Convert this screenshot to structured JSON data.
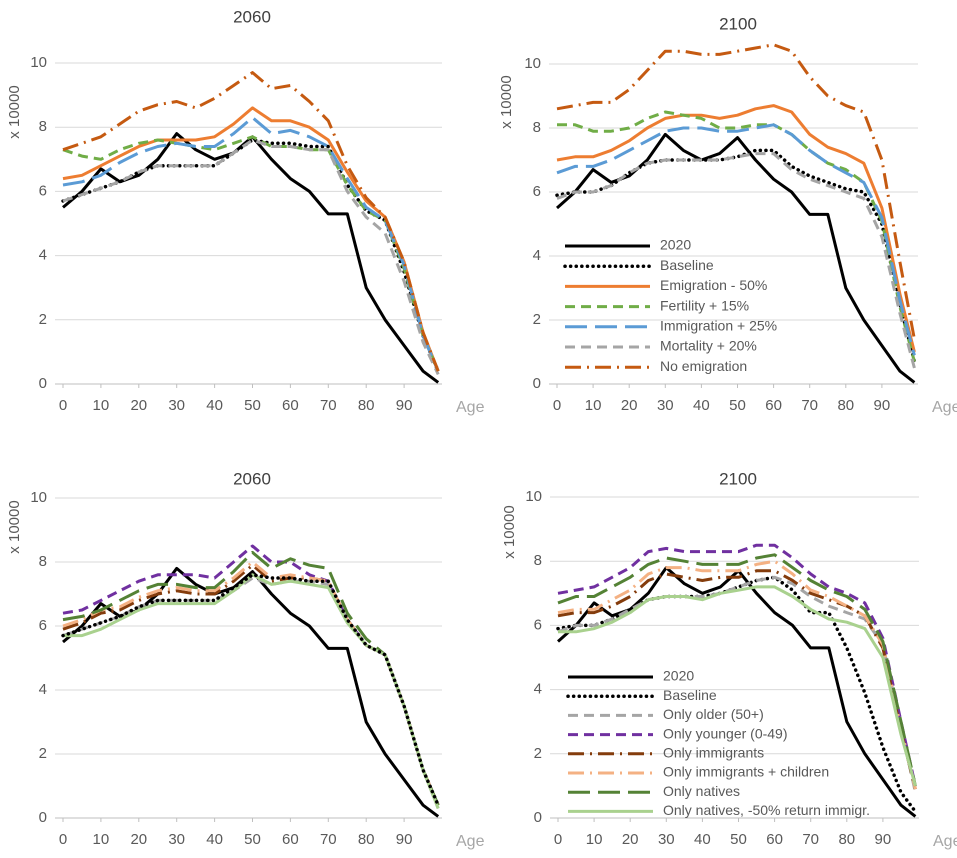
{
  "chart_data": [
    {
      "type": "line",
      "title": "2060",
      "y_label": "x 10000",
      "x_label": "Age",
      "grid": true,
      "legend": false,
      "xlim": [
        0,
        100
      ],
      "xticks": [
        0,
        10,
        20,
        30,
        40,
        50,
        60,
        70,
        80,
        90
      ],
      "ylim": [
        0,
        10
      ],
      "yticks": [
        0,
        2,
        4,
        6,
        8,
        10
      ],
      "x": [
        0,
        5,
        10,
        15,
        20,
        25,
        30,
        35,
        40,
        45,
        50,
        55,
        60,
        65,
        70,
        75,
        80,
        85,
        90,
        95,
        99
      ],
      "series": [
        {
          "color": "#000000",
          "style": "solid",
          "values": [
            5.5,
            6.0,
            6.7,
            6.3,
            6.5,
            7.0,
            7.8,
            7.3,
            7.0,
            7.2,
            7.7,
            7.0,
            6.4,
            6.0,
            5.3,
            5.3,
            3.0,
            2.0,
            1.2,
            0.4,
            0.05
          ]
        },
        {
          "color": "#000000",
          "style": "dotted",
          "values": [
            5.7,
            5.9,
            6.1,
            6.3,
            6.6,
            6.8,
            6.8,
            6.8,
            6.8,
            7.2,
            7.6,
            7.5,
            7.5,
            7.4,
            7.4,
            6.2,
            5.4,
            5.1,
            3.5,
            1.5,
            0.4
          ]
        },
        {
          "color": "#ed7d31",
          "style": "solid",
          "values": [
            6.4,
            6.5,
            6.8,
            7.1,
            7.4,
            7.6,
            7.6,
            7.6,
            7.7,
            8.1,
            8.6,
            8.2,
            8.2,
            8.0,
            7.6,
            6.6,
            5.7,
            5.2,
            3.8,
            1.6,
            0.4
          ]
        },
        {
          "color": "#70ad47",
          "style": "dash",
          "values": [
            7.3,
            7.1,
            7.0,
            7.3,
            7.5,
            7.6,
            7.5,
            7.4,
            7.3,
            7.5,
            7.7,
            7.4,
            7.4,
            7.3,
            7.3,
            6.2,
            5.4,
            5.1,
            3.6,
            1.5,
            0.4
          ]
        },
        {
          "color": "#5b9bd5",
          "style": "longdash",
          "values": [
            6.2,
            6.3,
            6.5,
            6.9,
            7.2,
            7.4,
            7.5,
            7.4,
            7.4,
            7.8,
            8.3,
            7.8,
            7.9,
            7.7,
            7.4,
            6.4,
            5.5,
            5.1,
            3.7,
            1.5,
            0.4
          ]
        },
        {
          "color": "#a5a5a5",
          "style": "dash",
          "values": [
            5.7,
            5.9,
            6.1,
            6.3,
            6.6,
            6.8,
            6.8,
            6.8,
            6.8,
            7.2,
            7.6,
            7.4,
            7.4,
            7.3,
            7.3,
            6.0,
            5.2,
            4.7,
            3.2,
            1.3,
            0.3
          ]
        },
        {
          "color": "#c55a11",
          "style": "dashdot",
          "values": [
            7.3,
            7.5,
            7.7,
            8.1,
            8.5,
            8.7,
            8.8,
            8.6,
            8.9,
            9.3,
            9.7,
            9.2,
            9.3,
            8.8,
            8.2,
            6.8,
            5.8,
            5.2,
            3.8,
            1.6,
            0.4
          ]
        }
      ]
    },
    {
      "type": "line",
      "title": "2100",
      "y_label": "x 10000",
      "x_label": "Age",
      "grid": true,
      "legend": true,
      "xlim": [
        0,
        100
      ],
      "xticks": [
        0,
        10,
        20,
        30,
        40,
        50,
        60,
        70,
        80,
        90
      ],
      "ylim": [
        0,
        10
      ],
      "yticks": [
        0,
        2,
        4,
        6,
        8,
        10
      ],
      "x": [
        0,
        5,
        10,
        15,
        20,
        25,
        30,
        35,
        40,
        45,
        50,
        55,
        60,
        65,
        70,
        75,
        80,
        85,
        90,
        95,
        99
      ],
      "series": [
        {
          "name": "2020",
          "color": "#000000",
          "style": "solid",
          "values": [
            5.5,
            6.0,
            6.7,
            6.3,
            6.5,
            7.0,
            7.8,
            7.3,
            7.0,
            7.2,
            7.7,
            7.0,
            6.4,
            6.0,
            5.3,
            5.3,
            3.0,
            2.0,
            1.2,
            0.4,
            0.05
          ]
        },
        {
          "name": "Baseline",
          "color": "#000000",
          "style": "dotted",
          "values": [
            5.9,
            6.0,
            6.0,
            6.2,
            6.6,
            6.9,
            7.0,
            7.0,
            7.0,
            7.0,
            7.1,
            7.3,
            7.3,
            6.8,
            6.5,
            6.3,
            6.1,
            6.0,
            5.0,
            2.5,
            0.7
          ]
        },
        {
          "name": "Emigration - 50%",
          "color": "#ed7d31",
          "style": "solid",
          "values": [
            7.0,
            7.1,
            7.1,
            7.3,
            7.6,
            8.0,
            8.3,
            8.4,
            8.4,
            8.3,
            8.4,
            8.6,
            8.7,
            8.5,
            7.8,
            7.4,
            7.2,
            6.9,
            5.5,
            2.8,
            1.0
          ]
        },
        {
          "name": "Fertility + 15%",
          "color": "#70ad47",
          "style": "dash",
          "values": [
            8.1,
            8.1,
            7.9,
            7.9,
            8.0,
            8.3,
            8.5,
            8.4,
            8.3,
            8.0,
            8.0,
            8.1,
            8.1,
            7.8,
            7.3,
            6.9,
            6.7,
            6.3,
            5.1,
            2.4,
            0.7
          ]
        },
        {
          "name": "Immigration + 25%",
          "color": "#5b9bd5",
          "style": "longdash",
          "values": [
            6.6,
            6.8,
            6.8,
            7.0,
            7.3,
            7.6,
            7.9,
            8.0,
            8.0,
            7.9,
            7.9,
            8.0,
            8.1,
            7.8,
            7.3,
            6.9,
            6.6,
            6.3,
            5.2,
            2.6,
            0.9
          ]
        },
        {
          "name": "Mortality + 20%",
          "color": "#a5a5a5",
          "style": "dash",
          "values": [
            5.8,
            6.0,
            6.0,
            6.2,
            6.6,
            6.9,
            7.0,
            7.0,
            7.0,
            7.0,
            7.1,
            7.2,
            7.2,
            6.7,
            6.4,
            6.2,
            6.0,
            5.8,
            4.6,
            2.2,
            0.5
          ]
        },
        {
          "name": "No emigration",
          "color": "#c55a11",
          "style": "dashdot",
          "values": [
            8.6,
            8.7,
            8.8,
            8.8,
            9.2,
            9.8,
            10.4,
            10.4,
            10.3,
            10.3,
            10.4,
            10.5,
            10.6,
            10.4,
            9.6,
            9.0,
            8.7,
            8.5,
            7.0,
            3.8,
            1.4
          ]
        }
      ]
    },
    {
      "type": "line",
      "title": "2060",
      "y_label": "x 10000",
      "x_label": "Age",
      "grid": true,
      "legend": false,
      "xlim": [
        0,
        100
      ],
      "xticks": [
        0,
        10,
        20,
        30,
        40,
        50,
        60,
        70,
        80,
        90
      ],
      "ylim": [
        0,
        10
      ],
      "yticks": [
        0,
        2,
        4,
        6,
        8,
        10
      ],
      "x": [
        0,
        5,
        10,
        15,
        20,
        25,
        30,
        35,
        40,
        45,
        50,
        55,
        60,
        65,
        70,
        75,
        80,
        85,
        90,
        95,
        99
      ],
      "series": [
        {
          "color": "#000000",
          "style": "solid",
          "values": [
            5.5,
            6.0,
            6.7,
            6.3,
            6.5,
            7.0,
            7.8,
            7.3,
            7.0,
            7.2,
            7.7,
            7.0,
            6.4,
            6.0,
            5.3,
            5.3,
            3.0,
            2.0,
            1.2,
            0.4,
            0.05
          ]
        },
        {
          "color": "#a5a5a5",
          "style": "dash",
          "values": [
            5.7,
            5.9,
            6.1,
            6.3,
            6.6,
            6.8,
            6.8,
            6.8,
            6.8,
            7.1,
            7.5,
            7.3,
            7.4,
            7.4,
            7.3,
            6.2,
            5.4,
            5.1,
            3.5,
            1.5,
            0.3
          ]
        },
        {
          "color": "#7030a0",
          "style": "dash",
          "values": [
            6.4,
            6.5,
            6.8,
            7.1,
            7.4,
            7.6,
            7.6,
            7.6,
            7.5,
            8.0,
            8.5,
            8.0,
            8.0,
            7.6,
            7.4,
            6.2,
            5.4,
            5.1,
            3.5,
            1.5,
            0.4
          ]
        },
        {
          "color": "#843c0c",
          "style": "dashdot",
          "values": [
            5.9,
            6.1,
            6.4,
            6.5,
            6.8,
            7.0,
            7.1,
            7.0,
            7.0,
            7.4,
            7.9,
            7.4,
            7.5,
            7.5,
            7.4,
            6.2,
            5.4,
            5.1,
            3.5,
            1.5,
            0.4
          ]
        },
        {
          "color": "#f4b183",
          "style": "dashdot",
          "values": [
            6.0,
            6.2,
            6.5,
            6.6,
            6.9,
            7.1,
            7.2,
            7.1,
            7.1,
            7.5,
            8.0,
            7.5,
            7.6,
            7.5,
            7.4,
            6.2,
            5.4,
            5.1,
            3.5,
            1.5,
            0.4
          ]
        },
        {
          "color": "#548235",
          "style": "longdash",
          "values": [
            6.2,
            6.3,
            6.5,
            6.8,
            7.1,
            7.3,
            7.3,
            7.2,
            7.2,
            7.7,
            8.3,
            7.8,
            8.1,
            7.9,
            7.8,
            6.4,
            5.6,
            5.1,
            3.5,
            1.5,
            0.4
          ]
        },
        {
          "color": "#a9d18e",
          "style": "solid",
          "values": [
            5.7,
            5.7,
            5.9,
            6.2,
            6.5,
            6.7,
            6.7,
            6.7,
            6.7,
            7.1,
            7.6,
            7.3,
            7.4,
            7.3,
            7.2,
            6.1,
            5.4,
            5.1,
            3.5,
            1.5,
            0.3
          ]
        },
        {
          "color": "#000000",
          "style": "dotted",
          "values": [
            5.7,
            5.9,
            6.1,
            6.3,
            6.6,
            6.8,
            6.8,
            6.8,
            6.8,
            7.2,
            7.6,
            7.5,
            7.5,
            7.4,
            7.4,
            6.2,
            5.4,
            5.1,
            3.5,
            1.5,
            0.4
          ]
        }
      ]
    },
    {
      "type": "line",
      "title": "2100",
      "y_label": "x 10000",
      "x_label": "Age",
      "grid": true,
      "legend": true,
      "xlim": [
        0,
        100
      ],
      "xticks": [
        0,
        10,
        20,
        30,
        40,
        50,
        60,
        70,
        80,
        90
      ],
      "ylim": [
        0,
        10
      ],
      "yticks": [
        0,
        2,
        4,
        6,
        8,
        10
      ],
      "x": [
        0,
        5,
        10,
        15,
        20,
        25,
        30,
        35,
        40,
        45,
        50,
        55,
        60,
        65,
        70,
        75,
        80,
        85,
        90,
        95,
        99
      ],
      "series": [
        {
          "name": "2020",
          "color": "#000000",
          "style": "solid",
          "values": [
            5.5,
            6.0,
            6.7,
            6.3,
            6.5,
            7.0,
            7.8,
            7.3,
            7.0,
            7.2,
            7.7,
            7.0,
            6.4,
            6.0,
            5.3,
            5.3,
            3.0,
            2.0,
            1.2,
            0.4,
            0.05
          ]
        },
        {
          "name": "Baseline",
          "color": "#000000",
          "style": "dotted",
          "values": [
            5.9,
            6.0,
            6.0,
            6.2,
            6.5,
            6.8,
            6.9,
            6.9,
            6.9,
            7.0,
            7.2,
            7.4,
            7.5,
            7.1,
            6.4,
            6.4,
            5.3,
            3.9,
            2.2,
            0.8,
            0.2
          ]
        },
        {
          "name": "Only older (50+)",
          "color": "#a5a5a5",
          "style": "dash",
          "values": [
            5.8,
            6.0,
            6.0,
            6.2,
            6.5,
            6.8,
            6.9,
            6.9,
            6.9,
            7.0,
            7.2,
            7.4,
            7.5,
            7.3,
            6.9,
            6.6,
            6.4,
            6.2,
            5.4,
            2.8,
            0.8
          ]
        },
        {
          "name": "Only younger (0-49)",
          "color": "#7030a0",
          "style": "dash",
          "values": [
            7.0,
            7.1,
            7.2,
            7.5,
            7.8,
            8.3,
            8.4,
            8.3,
            8.3,
            8.3,
            8.3,
            8.5,
            8.5,
            8.1,
            7.6,
            7.2,
            7.0,
            6.7,
            5.6,
            3.0,
            1.0
          ]
        },
        {
          "name": "Only immigrants",
          "color": "#843c0c",
          "style": "dashdot",
          "values": [
            6.3,
            6.4,
            6.4,
            6.6,
            6.9,
            7.4,
            7.6,
            7.5,
            7.4,
            7.5,
            7.5,
            7.7,
            7.7,
            7.4,
            7.0,
            6.8,
            6.6,
            6.3,
            5.3,
            2.7,
            0.9
          ]
        },
        {
          "name": "Only immigrants + children",
          "color": "#f4b183",
          "style": "dashdot",
          "values": [
            6.4,
            6.5,
            6.5,
            6.8,
            7.1,
            7.6,
            7.8,
            7.8,
            7.7,
            7.7,
            7.7,
            7.9,
            8.0,
            7.6,
            7.1,
            6.9,
            6.6,
            6.3,
            5.4,
            2.8,
            0.9
          ]
        },
        {
          "name": "Only natives",
          "color": "#548235",
          "style": "longdash",
          "values": [
            6.7,
            6.9,
            6.9,
            7.2,
            7.5,
            7.9,
            8.1,
            8.0,
            7.9,
            7.9,
            7.9,
            8.1,
            8.2,
            7.8,
            7.4,
            7.1,
            6.9,
            6.5,
            5.5,
            3.0,
            1.0
          ]
        },
        {
          "name": "Only natives, -50% return immigr.",
          "color": "#a9d18e",
          "style": "solid",
          "values": [
            5.8,
            5.8,
            5.9,
            6.1,
            6.4,
            6.8,
            6.9,
            6.9,
            6.8,
            7.0,
            7.1,
            7.2,
            7.2,
            6.9,
            6.5,
            6.2,
            6.1,
            5.9,
            5.0,
            2.6,
            1.0
          ]
        }
      ]
    }
  ]
}
